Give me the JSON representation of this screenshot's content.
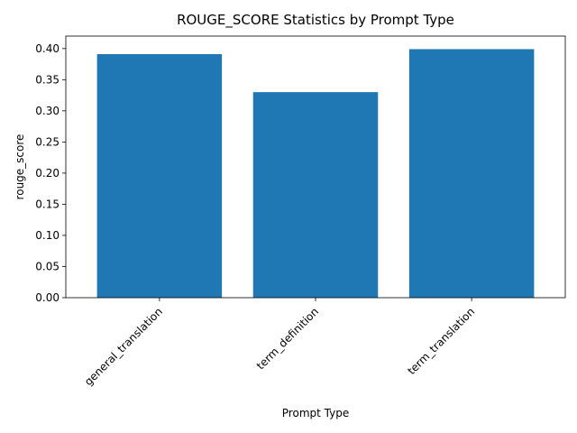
{
  "chart_data": {
    "type": "bar",
    "title": "ROUGE_SCORE Statistics by Prompt Type",
    "xlabel": "Prompt Type",
    "ylabel": "rouge_score",
    "categories": [
      "general_translation",
      "term_definition",
      "term_translation"
    ],
    "values": [
      0.391,
      0.33,
      0.399
    ],
    "ylim": [
      0,
      0.42
    ],
    "yticks": [
      "0.00",
      "0.05",
      "0.10",
      "0.15",
      "0.20",
      "0.25",
      "0.30",
      "0.35",
      "0.40"
    ],
    "grid": false,
    "legend": "none",
    "bar_color": "#1f77b4"
  }
}
